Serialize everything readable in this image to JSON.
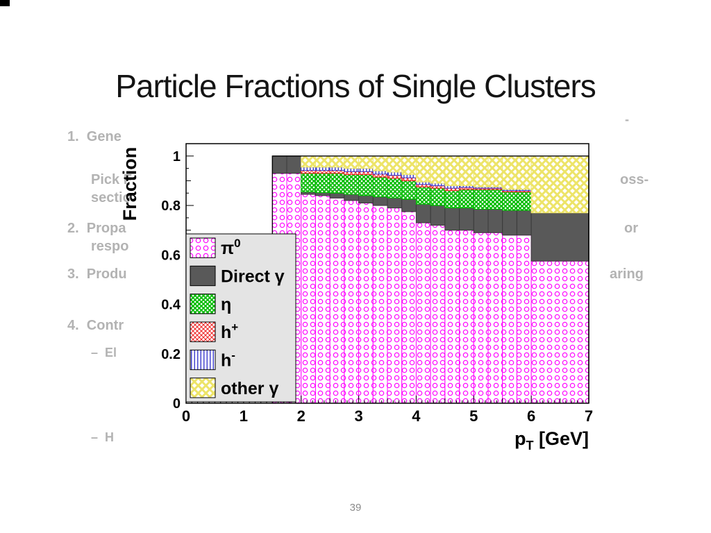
{
  "slide": {
    "title": "Particle Fractions of Single Clusters",
    "page_number": "39"
  },
  "ghost_text": {
    "items": [
      {
        "text": "1.  Gene"
      },
      {
        "text": "Pick F"
      },
      {
        "text": "sectio"
      },
      {
        "text": "2.  Propa"
      },
      {
        "text": "respo"
      },
      {
        "text": "3.  Produ"
      },
      {
        "text": "4.  Contr"
      },
      {
        "text": "–  El"
      },
      {
        "text": "–  H"
      },
      {
        "text": "oss-"
      },
      {
        "text": "or"
      },
      {
        "text": "aring"
      },
      {
        "text": "-"
      }
    ]
  },
  "chart_data": {
    "type": "bar",
    "subtype": "stacked-histogram",
    "title": "",
    "xlabel": "p_T [GeV]",
    "xlabel_parts": {
      "base": "p",
      "sub": "T",
      "rest": " [GeV]"
    },
    "ylabel": "Fraction",
    "xlim": [
      0,
      7
    ],
    "ylim": [
      0,
      1.05
    ],
    "grid": false,
    "legend_position": "inside-left",
    "xticks": [
      0,
      1,
      2,
      3,
      4,
      5,
      6,
      7
    ],
    "yticks": [
      {
        "v": 0,
        "label": "0"
      },
      {
        "v": 0.2,
        "label": "0.2"
      },
      {
        "v": 0.4,
        "label": "0.4"
      },
      {
        "v": 0.6,
        "label": "0.6"
      },
      {
        "v": 0.8,
        "label": "0.8"
      },
      {
        "v": 1,
        "label": "1"
      }
    ],
    "bin_edges": [
      1.5,
      1.75,
      2.0,
      2.25,
      2.5,
      2.75,
      3.0,
      3.25,
      3.5,
      3.75,
      4.0,
      4.25,
      4.5,
      4.75,
      5.0,
      5.25,
      5.5,
      5.75,
      6.0,
      7.0
    ],
    "series": [
      {
        "name": "pi0",
        "label": "π",
        "label_sup": "0",
        "color": "#FF00FF",
        "pattern": {
          "type": "circles",
          "size": 11,
          "r": 3.2,
          "lw": 1.2
        },
        "values": [
          0.93,
          0.93,
          0.845,
          0.84,
          0.83,
          0.82,
          0.81,
          0.8,
          0.79,
          0.775,
          0.73,
          0.72,
          0.7,
          0.7,
          0.69,
          0.69,
          0.68,
          0.68,
          0.575
        ]
      },
      {
        "name": "direct-gamma",
        "label": "Direct γ",
        "color": "#595959",
        "pattern": {
          "type": "solid"
        },
        "values": [
          0.07,
          0.07,
          0.01,
          0.012,
          0.02,
          0.025,
          0.03,
          0.035,
          0.04,
          0.05,
          0.075,
          0.08,
          0.09,
          0.09,
          0.095,
          0.095,
          0.1,
          0.1,
          0.195
        ]
      },
      {
        "name": "eta",
        "label": "η",
        "color": "#00BB00",
        "pattern": {
          "type": "crosshatch",
          "size": 6,
          "lw": 1.8
        },
        "values": [
          0,
          0,
          0.075,
          0.078,
          0.08,
          0.08,
          0.085,
          0.08,
          0.08,
          0.075,
          0.07,
          0.07,
          0.07,
          0.075,
          0.08,
          0.08,
          0.075,
          0.075,
          0
        ]
      },
      {
        "name": "h-plus",
        "label": "h",
        "label_sup": "+",
        "color": "#EE2222",
        "pattern": {
          "type": "crosshatch",
          "size": 6,
          "lw": 1
        },
        "values": [
          0,
          0,
          0.012,
          0.012,
          0.012,
          0.012,
          0.012,
          0.012,
          0.012,
          0.012,
          0.01,
          0.01,
          0.01,
          0.008,
          0.005,
          0.005,
          0.005,
          0.005,
          0
        ]
      },
      {
        "name": "h-minus",
        "label": "h",
        "label_sup": "-",
        "color": "#3A3ACC",
        "pattern": {
          "type": "vlines",
          "size": 4.5,
          "lw": 1.4
        },
        "values": [
          0,
          0,
          0.013,
          0.013,
          0.013,
          0.013,
          0.013,
          0.013,
          0.013,
          0.013,
          0.01,
          0.01,
          0.01,
          0.007,
          0.005,
          0.005,
          0.005,
          0.005,
          0
        ]
      },
      {
        "name": "other-gamma",
        "label": "other γ",
        "color": "#EDE468",
        "pattern": {
          "type": "crosshatch",
          "size": 11,
          "lw": 3
        },
        "values": [
          0,
          0,
          0.045,
          0.045,
          0.045,
          0.05,
          0.05,
          0.06,
          0.065,
          0.075,
          0.105,
          0.11,
          0.12,
          0.12,
          0.125,
          0.125,
          0.135,
          0.135,
          0.23
        ]
      }
    ]
  }
}
